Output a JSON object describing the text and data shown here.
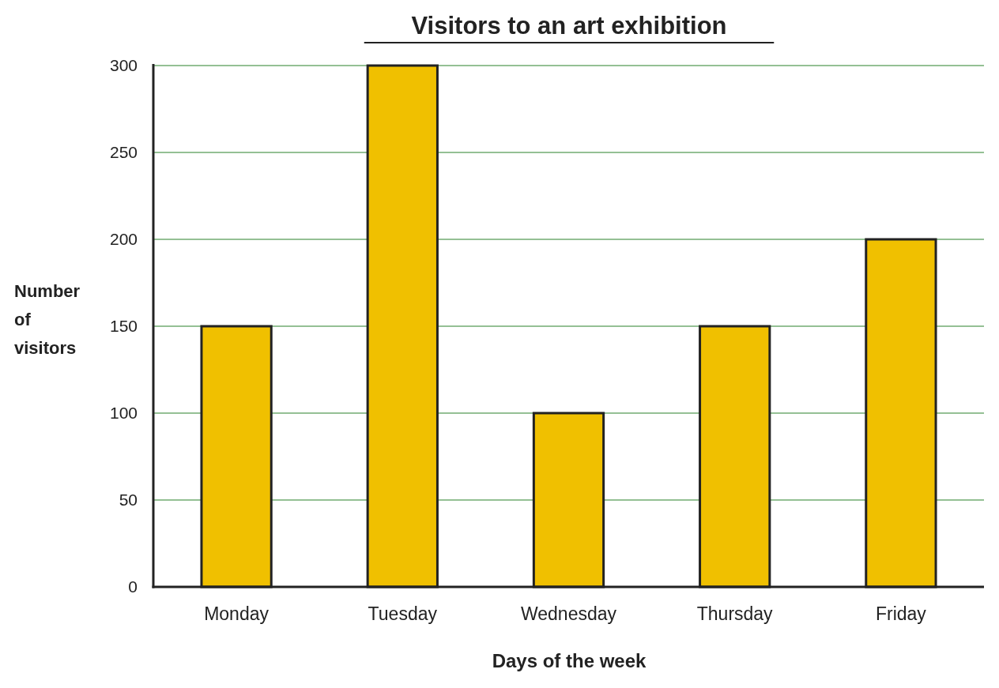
{
  "chart_data": {
    "type": "bar",
    "title": "Visitors to an art exhibition",
    "xlabel": "Days of the week",
    "ylabel": "Number of visitors",
    "categories": [
      "Monday",
      "Tuesday",
      "Wednesday",
      "Thursday",
      "Friday"
    ],
    "values": [
      150,
      300,
      100,
      150,
      200
    ],
    "color": "#f0c000",
    "ylim": [
      0,
      300
    ],
    "yticks": [
      0,
      50,
      100,
      150,
      200,
      250,
      300
    ],
    "grid": "y"
  }
}
